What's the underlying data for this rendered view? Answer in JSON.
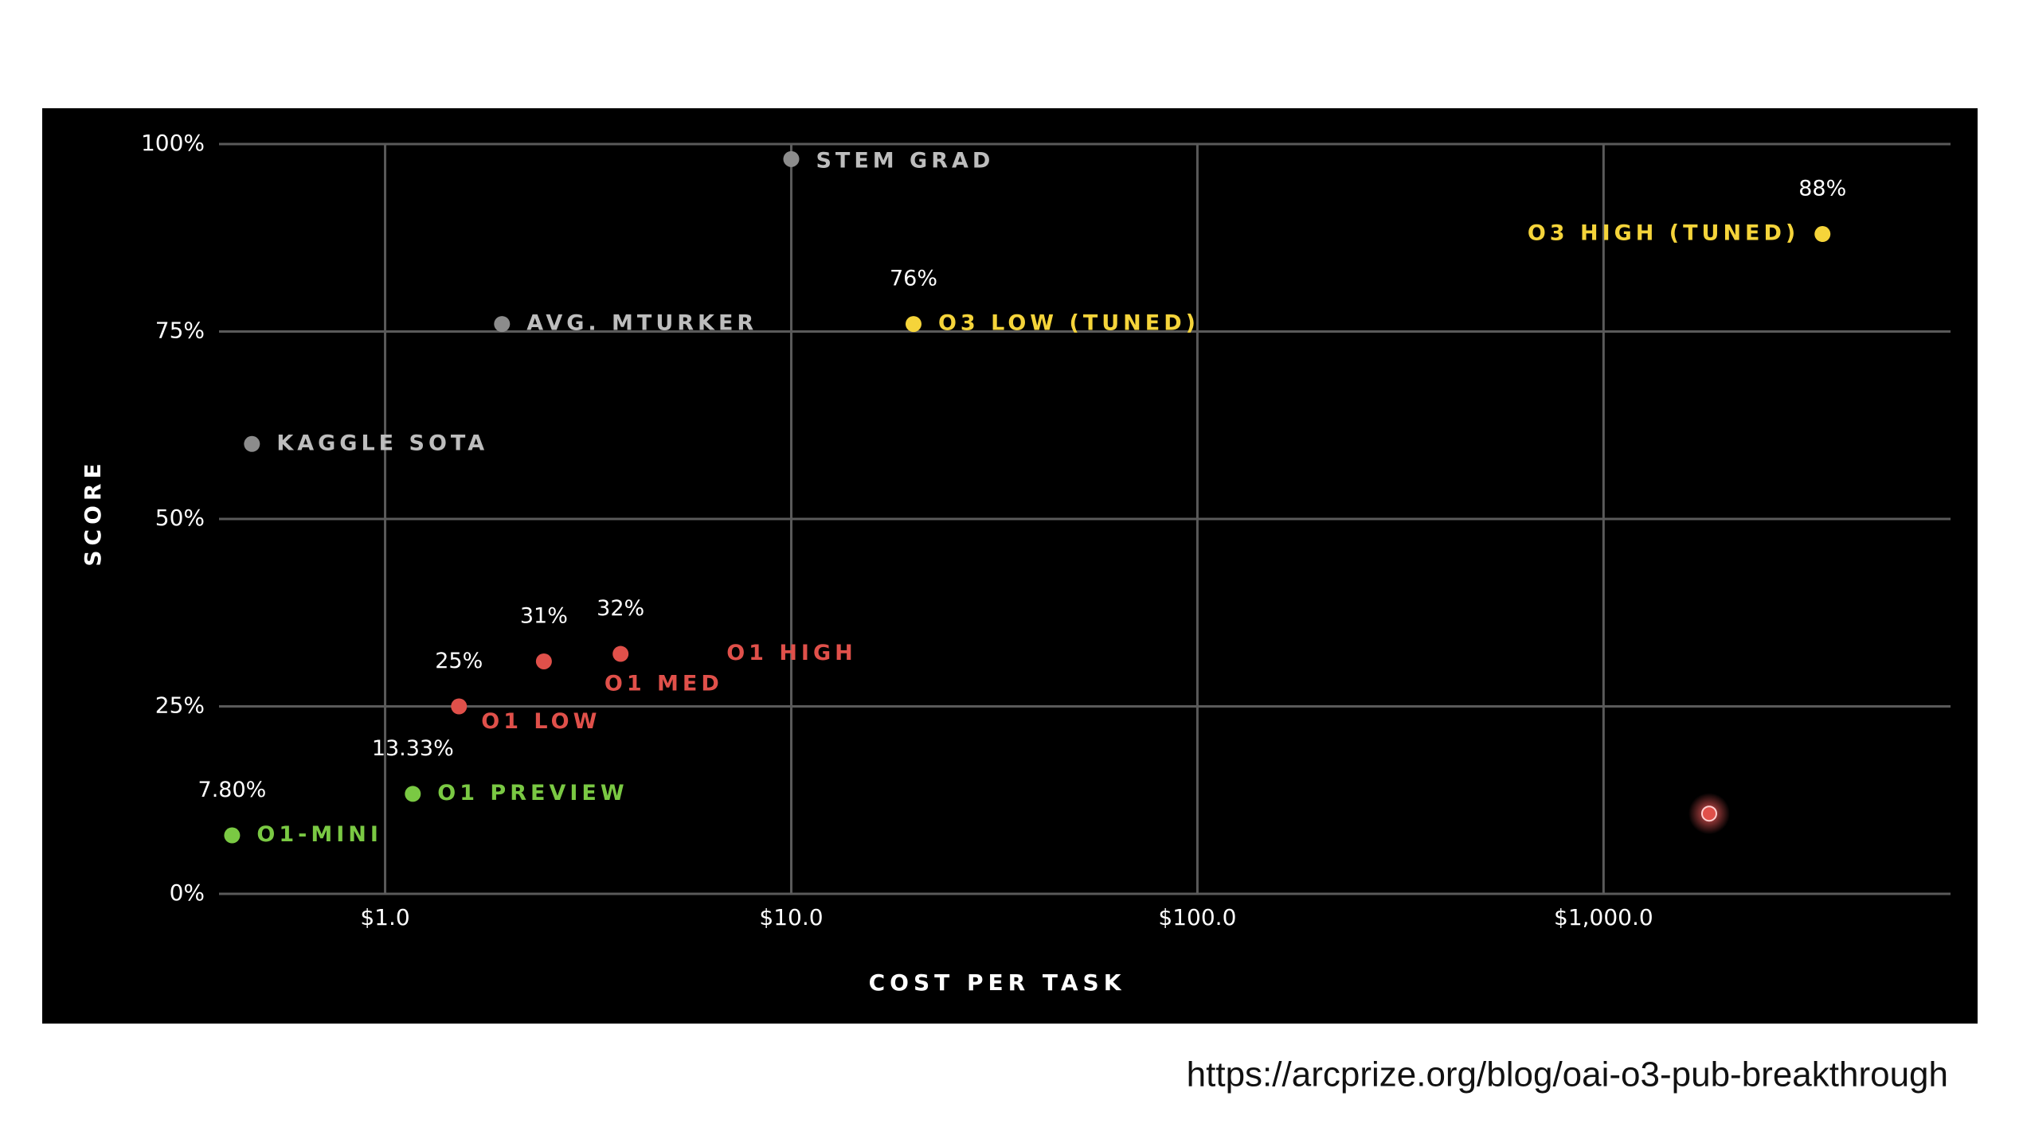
{
  "chart_data": {
    "type": "scatter",
    "x_label": "COST PER TASK",
    "y_label": "SCORE",
    "x_log": true,
    "grid": true,
    "xlim": [
      0.39,
      7150
    ],
    "ylim": [
      0,
      100
    ],
    "xticks": [
      {
        "value": 1,
        "label": "$1.0"
      },
      {
        "value": 10,
        "label": "$10.0"
      },
      {
        "value": 100,
        "label": "$100.0"
      },
      {
        "value": 1000,
        "label": "$1,000.0"
      }
    ],
    "yticks": [
      {
        "value": 0,
        "label": "0%"
      },
      {
        "value": 25,
        "label": "25%"
      },
      {
        "value": 50,
        "label": "50%"
      },
      {
        "value": 75,
        "label": "75%"
      },
      {
        "value": 100,
        "label": "100%"
      }
    ],
    "points": [
      {
        "label": "STEM GRAD",
        "x": 10,
        "y": 98,
        "color": "#8c8c8c",
        "label_color": "#bdbdbd"
      },
      {
        "label": "AVG. MTURKER",
        "x": 1.94,
        "y": 76,
        "color": "#8c8c8c",
        "label_color": "#bdbdbd"
      },
      {
        "label": "KAGGLE SOTA",
        "x": 0.47,
        "y": 60,
        "color": "#8c8c8c",
        "label_color": "#bdbdbd"
      },
      {
        "label": "O3 LOW (TUNED)",
        "x": 20,
        "y": 76,
        "value_label": "76%",
        "color": "#f5d43a",
        "label_color": "#f5d43a"
      },
      {
        "label": "O3 HIGH (TUNED)",
        "x": 3460,
        "y": 88,
        "value_label": "88%",
        "color": "#f5d43a",
        "label_color": "#f5d43a"
      },
      {
        "label": "O1 HIGH",
        "x": 3.8,
        "y": 32,
        "value_label": "32%",
        "color": "#e0504a",
        "label_color": "#e0504a"
      },
      {
        "label": "O1 MED",
        "x": 2.46,
        "y": 31,
        "value_label": "31%",
        "color": "#e0504a",
        "label_color": "#e0504a"
      },
      {
        "label": "O1 LOW",
        "x": 1.52,
        "y": 25,
        "value_label": "25%",
        "color": "#e0504a",
        "label_color": "#e0504a"
      },
      {
        "label": "O1 PREVIEW",
        "x": 1.17,
        "y": 13.33,
        "value_label": "13.33%",
        "color": "#7ac943",
        "label_color": "#7ac943"
      },
      {
        "label": "O1-MINI",
        "x": 0.42,
        "y": 7.8,
        "value_label": "7.80%",
        "color": "#7ac943",
        "label_color": "#7ac943"
      },
      {
        "label": null,
        "x": 1820,
        "y": 10.7,
        "color": "#e0504a"
      }
    ]
  },
  "source": "https://arcprize.org/blog/oai-o3-pub-breakthrough"
}
